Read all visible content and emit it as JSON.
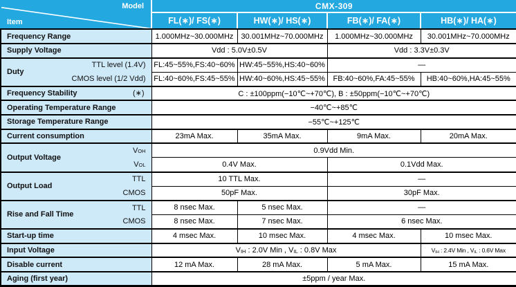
{
  "header": {
    "model_label": "Model",
    "item_label": "Item",
    "product_label": "CMX-309",
    "columns": [
      "FL(∗)/ FS(∗)",
      "HW(∗)/ HS(∗)",
      "FB(∗)/ FA(∗)",
      "HB(∗)/ HA(∗)"
    ]
  },
  "rows": {
    "frequency_range": {
      "label": "Frequency Range",
      "values": [
        "1.000MHz~30.000MHz",
        "30.001MHz~70.000MHz",
        "1.000MHz~30.000MHz",
        "30.001MHz~70.000MHz"
      ]
    },
    "supply_voltage": {
      "label": "Supply Voltage",
      "left": "Vdd : 5.0V±0.5V",
      "right": "Vdd : 3.3V±0.3V"
    },
    "duty": {
      "label": "Duty",
      "ttl": {
        "sublabel": "TTL level (1.4V)",
        "c1": "FL:45~55%,FS:40~60%",
        "c2": "HW:45~55%,HS:40~60%",
        "c34": "—"
      },
      "cmos": {
        "sublabel": "CMOS level (1/2 Vdd)",
        "c1": "FL:40~60%,FS:45~55%",
        "c2": "HW:40~60%,HS:45~55%",
        "c3": "FB:40~60%,FA:45~55%",
        "c4": "HB:40~60%,HA:45~55%"
      }
    },
    "frequency_stability": {
      "label": "Frequency Stability",
      "marker": "(∗)",
      "value": "C : ±100ppm(−10℃~+70℃), B : ±50ppm(−10℃~+70℃)"
    },
    "operating_temperature": {
      "label": "Operating Temperature Range",
      "value": "−40℃~+85℃"
    },
    "storage_temperature": {
      "label": "Storage Temperature Range",
      "value": "−55℃~+125℃"
    },
    "current_consumption": {
      "label": "Current consumption",
      "values": [
        "23mA Max.",
        "35mA Max.",
        "9mA Max.",
        "20mA Max."
      ]
    },
    "output_voltage": {
      "label": "Output Voltage",
      "voh": {
        "sublabel": "V[sub]OH[/sub]",
        "value": "0.9Vdd Min."
      },
      "vol": {
        "sublabel": "V[sub]OL[/sub]",
        "left": "0.4V Max.",
        "right": "0.1Vdd Max."
      }
    },
    "output_load": {
      "label": "Output Load",
      "ttl": {
        "sublabel": "TTL",
        "left": "10 TTL Max.",
        "right": "—"
      },
      "cmos": {
        "sublabel": "CMOS",
        "left": "50pF Max.",
        "right": "30pF Max."
      }
    },
    "rise_fall_time": {
      "label": "Rise and Fall Time",
      "ttl": {
        "sublabel": "TTL",
        "c1": "8 nsec Max.",
        "c2": "5 nsec Max.",
        "c34": "—"
      },
      "cmos": {
        "sublabel": "CMOS",
        "c1": "8 nsec Max.",
        "c2": "7 nsec Max.",
        "c34": "6 nsec Max."
      }
    },
    "startup_time": {
      "label": "Start-up time",
      "values": [
        "4 msec Max.",
        "10 msec Max.",
        "4 msec Max.",
        "10 msec Max."
      ]
    },
    "input_voltage": {
      "label": "Input Voltage",
      "c123": "V[sub]IH[/sub] : 2.0V Min , V[sub]IL[/sub] : 0.8V Max",
      "c4": "V[sub]IH[/sub] : 2.4V Min , V[sub]IL[/sub] : 0.6V Max"
    },
    "disable_current": {
      "label": "Disable current",
      "values": [
        "12 mA Max.",
        "28 mA Max.",
        "5 mA Max.",
        "15 mA Max."
      ]
    },
    "aging": {
      "label": "Aging (first year)",
      "value": "±5ppm / year Max."
    }
  },
  "colors": {
    "header_bg": "#24A8E0",
    "item_bg": "#CEE9F8",
    "border": "#000000",
    "header_text": "#FFFFFF"
  }
}
